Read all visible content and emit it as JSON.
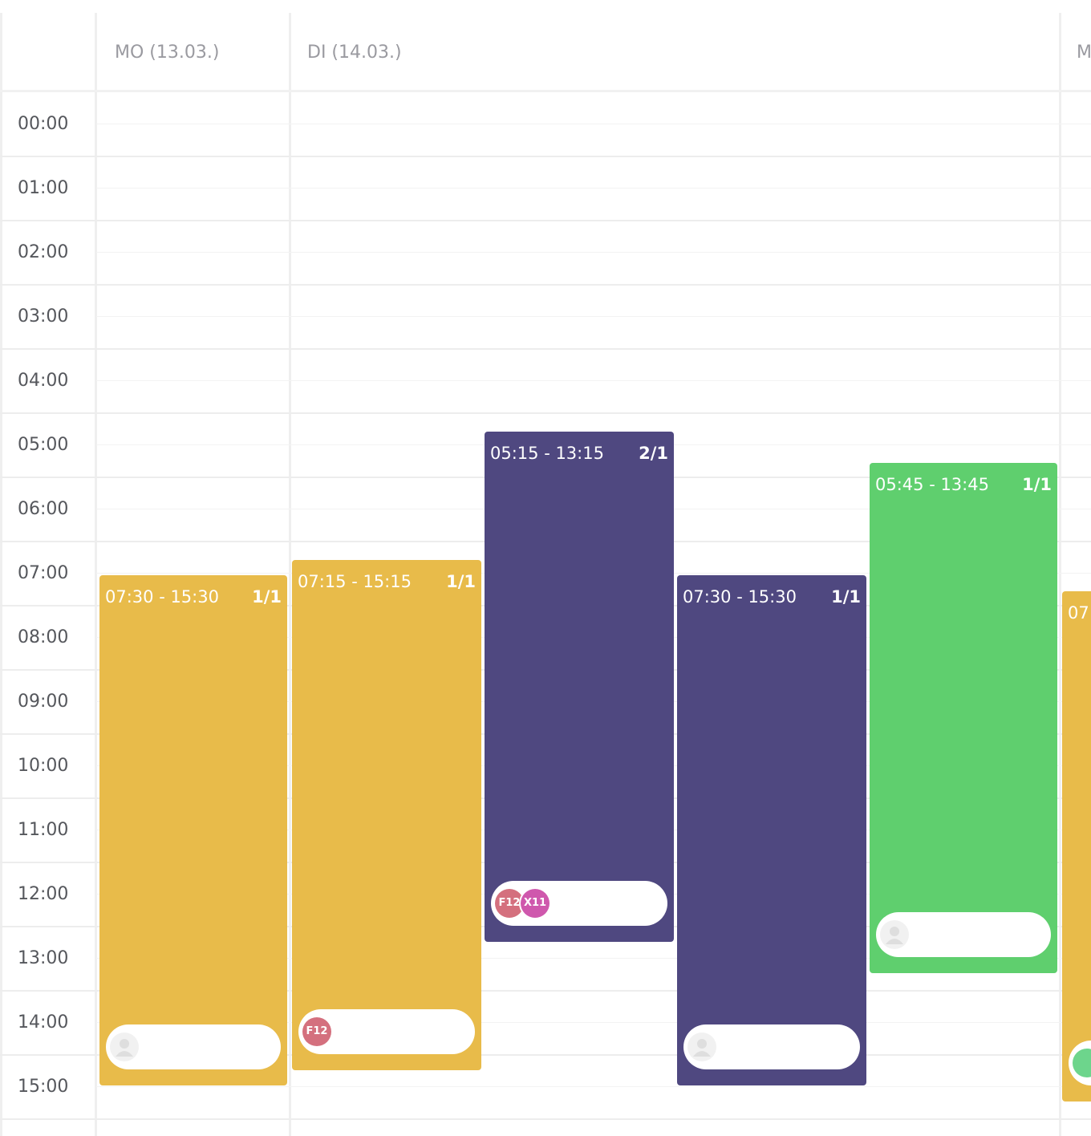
{
  "header": {
    "days": [
      "MO (13.03.)",
      "DI (14.03.)",
      "M"
    ]
  },
  "hours": [
    "00:00",
    "01:00",
    "02:00",
    "03:00",
    "04:00",
    "05:00",
    "06:00",
    "07:00",
    "08:00",
    "09:00",
    "10:00",
    "11:00",
    "12:00",
    "13:00",
    "14:00",
    "15:00"
  ],
  "shifts": [
    {
      "time": "07:30 - 15:30",
      "count": "1/1",
      "color": "#e8bb4a",
      "badges": []
    },
    {
      "time": "07:15 - 15:15",
      "count": "1/1",
      "color": "#e8bb4a",
      "badges": [
        {
          "label": "F12",
          "color": "#d4707e"
        }
      ]
    },
    {
      "time": "05:15 - 13:15",
      "count": "2/1",
      "color": "#4f4880",
      "badges": [
        {
          "label": "F12",
          "color": "#d4707e"
        },
        {
          "label": "X11",
          "color": "#cf58ad"
        }
      ]
    },
    {
      "time": "07:30 - 15:30",
      "count": "1/1",
      "color": "#4f4880",
      "badges": []
    },
    {
      "time": "05:45 - 13:45",
      "count": "1/1",
      "color": "#5fcf6e",
      "badges": []
    },
    {
      "time": "07",
      "color": "#e8bb4a",
      "badges": [
        {
          "color": "#6dd58c"
        }
      ]
    }
  ]
}
